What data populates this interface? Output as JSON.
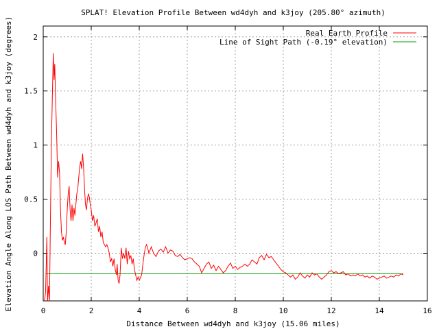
{
  "chart_data": {
    "type": "line",
    "title": "SPLAT! Elevation Profile Between wd4dyh and k3joy (205.80° azimuth)",
    "xlabel": "Distance Between wd4dyh and k3joy (15.06 miles)",
    "ylabel": "Elevation Angle Along LOS Path Between wd4dyh and k3joy (degrees)",
    "xlim": [
      0,
      16
    ],
    "ylim": [
      -0.44,
      2.1
    ],
    "xticks": [
      "0",
      "2",
      "4",
      "6",
      "8",
      "10",
      "12",
      "14",
      "16"
    ],
    "yticks": [
      "0",
      "0.5",
      "1",
      "1.5",
      "2"
    ],
    "grid": true,
    "legend_position": "top-right",
    "series": [
      {
        "name": "Real Earth Profile",
        "color": "#ff0000",
        "points": [
          [
            0.05,
            -0.45
          ],
          [
            0.1,
            -0.35
          ],
          [
            0.15,
            0.15
          ],
          [
            0.18,
            -0.45
          ],
          [
            0.22,
            -0.3
          ],
          [
            0.26,
            -0.45
          ],
          [
            0.3,
            0.3
          ],
          [
            0.34,
            1.0
          ],
          [
            0.38,
            1.45
          ],
          [
            0.42,
            1.85
          ],
          [
            0.45,
            1.6
          ],
          [
            0.48,
            1.75
          ],
          [
            0.52,
            1.4
          ],
          [
            0.56,
            1.1
          ],
          [
            0.6,
            0.7
          ],
          [
            0.64,
            0.85
          ],
          [
            0.68,
            0.75
          ],
          [
            0.72,
            0.4
          ],
          [
            0.76,
            0.2
          ],
          [
            0.8,
            0.12
          ],
          [
            0.84,
            0.15
          ],
          [
            0.88,
            0.1
          ],
          [
            0.92,
            0.08
          ],
          [
            0.96,
            0.2
          ],
          [
            1.0,
            0.4
          ],
          [
            1.04,
            0.55
          ],
          [
            1.08,
            0.62
          ],
          [
            1.12,
            0.4
          ],
          [
            1.16,
            0.3
          ],
          [
            1.2,
            0.45
          ],
          [
            1.24,
            0.3
          ],
          [
            1.28,
            0.42
          ],
          [
            1.32,
            0.35
          ],
          [
            1.36,
            0.45
          ],
          [
            1.4,
            0.55
          ],
          [
            1.44,
            0.6
          ],
          [
            1.48,
            0.7
          ],
          [
            1.52,
            0.8
          ],
          [
            1.56,
            0.85
          ],
          [
            1.6,
            0.78
          ],
          [
            1.64,
            0.92
          ],
          [
            1.68,
            0.8
          ],
          [
            1.72,
            0.6
          ],
          [
            1.76,
            0.45
          ],
          [
            1.8,
            0.4
          ],
          [
            1.84,
            0.5
          ],
          [
            1.88,
            0.55
          ],
          [
            1.92,
            0.52
          ],
          [
            1.96,
            0.45
          ],
          [
            2.0,
            0.4
          ],
          [
            2.05,
            0.3
          ],
          [
            2.1,
            0.35
          ],
          [
            2.15,
            0.25
          ],
          [
            2.2,
            0.28
          ],
          [
            2.25,
            0.32
          ],
          [
            2.3,
            0.2
          ],
          [
            2.35,
            0.25
          ],
          [
            2.4,
            0.15
          ],
          [
            2.45,
            0.2
          ],
          [
            2.5,
            0.1
          ],
          [
            2.55,
            0.08
          ],
          [
            2.6,
            0.06
          ],
          [
            2.65,
            0.08
          ],
          [
            2.7,
            0.05
          ],
          [
            2.75,
            0.0
          ],
          [
            2.8,
            -0.08
          ],
          [
            2.85,
            -0.05
          ],
          [
            2.9,
            -0.12
          ],
          [
            2.95,
            -0.05
          ],
          [
            3.0,
            -0.15
          ],
          [
            3.05,
            -0.2
          ],
          [
            3.08,
            -0.1
          ],
          [
            3.12,
            -0.25
          ],
          [
            3.16,
            -0.28
          ],
          [
            3.2,
            -0.2
          ],
          [
            3.25,
            0.05
          ],
          [
            3.3,
            -0.05
          ],
          [
            3.35,
            0.0
          ],
          [
            3.4,
            -0.05
          ],
          [
            3.45,
            0.05
          ],
          [
            3.5,
            -0.1
          ],
          [
            3.55,
            0.02
          ],
          [
            3.6,
            -0.05
          ],
          [
            3.65,
            -0.02
          ],
          [
            3.7,
            -0.1
          ],
          [
            3.75,
            -0.05
          ],
          [
            3.8,
            -0.15
          ],
          [
            3.85,
            -0.2
          ],
          [
            3.9,
            -0.25
          ],
          [
            3.95,
            -0.22
          ],
          [
            4.0,
            -0.25
          ],
          [
            4.1,
            -0.2
          ],
          [
            4.15,
            -0.1
          ],
          [
            4.2,
            -0.02
          ],
          [
            4.25,
            0.05
          ],
          [
            4.3,
            0.08
          ],
          [
            4.35,
            0.05
          ],
          [
            4.4,
            0.0
          ],
          [
            4.45,
            0.03
          ],
          [
            4.5,
            0.06
          ],
          [
            4.6,
            0.0
          ],
          [
            4.7,
            -0.03
          ],
          [
            4.8,
            0.02
          ],
          [
            4.9,
            0.04
          ],
          [
            5.0,
            0.01
          ],
          [
            5.1,
            0.06
          ],
          [
            5.2,
            0.0
          ],
          [
            5.3,
            0.03
          ],
          [
            5.4,
            0.02
          ],
          [
            5.5,
            -0.02
          ],
          [
            5.6,
            -0.03
          ],
          [
            5.7,
            -0.01
          ],
          [
            5.8,
            -0.04
          ],
          [
            5.9,
            -0.06
          ],
          [
            6.0,
            -0.05
          ],
          [
            6.1,
            -0.04
          ],
          [
            6.2,
            -0.05
          ],
          [
            6.3,
            -0.08
          ],
          [
            6.4,
            -0.1
          ],
          [
            6.5,
            -0.12
          ],
          [
            6.6,
            -0.18
          ],
          [
            6.7,
            -0.14
          ],
          [
            6.8,
            -0.1
          ],
          [
            6.9,
            -0.08
          ],
          [
            7.0,
            -0.14
          ],
          [
            7.1,
            -0.11
          ],
          [
            7.2,
            -0.16
          ],
          [
            7.3,
            -0.12
          ],
          [
            7.4,
            -0.15
          ],
          [
            7.5,
            -0.18
          ],
          [
            7.6,
            -0.16
          ],
          [
            7.7,
            -0.12
          ],
          [
            7.8,
            -0.09
          ],
          [
            7.9,
            -0.14
          ],
          [
            8.0,
            -0.12
          ],
          [
            8.1,
            -0.15
          ],
          [
            8.2,
            -0.13
          ],
          [
            8.3,
            -0.12
          ],
          [
            8.4,
            -0.1
          ],
          [
            8.5,
            -0.12
          ],
          [
            8.6,
            -0.1
          ],
          [
            8.7,
            -0.06
          ],
          [
            8.8,
            -0.08
          ],
          [
            8.9,
            -0.1
          ],
          [
            9.0,
            -0.04
          ],
          [
            9.1,
            -0.02
          ],
          [
            9.2,
            -0.06
          ],
          [
            9.3,
            -0.01
          ],
          [
            9.4,
            -0.04
          ],
          [
            9.5,
            -0.03
          ],
          [
            9.6,
            -0.06
          ],
          [
            9.7,
            -0.09
          ],
          [
            9.8,
            -0.12
          ],
          [
            9.9,
            -0.15
          ],
          [
            10.0,
            -0.17
          ],
          [
            10.1,
            -0.18
          ],
          [
            10.2,
            -0.2
          ],
          [
            10.3,
            -0.22
          ],
          [
            10.4,
            -0.2
          ],
          [
            10.5,
            -0.24
          ],
          [
            10.6,
            -0.22
          ],
          [
            10.7,
            -0.18
          ],
          [
            10.8,
            -0.21
          ],
          [
            10.9,
            -0.23
          ],
          [
            11.0,
            -0.2
          ],
          [
            11.1,
            -0.22
          ],
          [
            11.2,
            -0.18
          ],
          [
            11.3,
            -0.2
          ],
          [
            11.4,
            -0.19
          ],
          [
            11.5,
            -0.22
          ],
          [
            11.6,
            -0.24
          ],
          [
            11.7,
            -0.22
          ],
          [
            11.8,
            -0.2
          ],
          [
            11.9,
            -0.17
          ],
          [
            12.0,
            -0.16
          ],
          [
            12.1,
            -0.18
          ],
          [
            12.2,
            -0.17
          ],
          [
            12.3,
            -0.19
          ],
          [
            12.4,
            -0.18
          ],
          [
            12.5,
            -0.17
          ],
          [
            12.6,
            -0.2
          ],
          [
            12.7,
            -0.19
          ],
          [
            12.8,
            -0.21
          ],
          [
            12.9,
            -0.2
          ],
          [
            13.0,
            -0.21
          ],
          [
            13.1,
            -0.19
          ],
          [
            13.2,
            -0.21
          ],
          [
            13.3,
            -0.2
          ],
          [
            13.4,
            -0.22
          ],
          [
            13.5,
            -0.21
          ],
          [
            13.6,
            -0.23
          ],
          [
            13.7,
            -0.21
          ],
          [
            13.8,
            -0.22
          ],
          [
            13.9,
            -0.24
          ],
          [
            14.0,
            -0.23
          ],
          [
            14.1,
            -0.22
          ],
          [
            14.2,
            -0.21
          ],
          [
            14.3,
            -0.23
          ],
          [
            14.4,
            -0.22
          ],
          [
            14.5,
            -0.21
          ],
          [
            14.6,
            -0.22
          ],
          [
            14.7,
            -0.2
          ],
          [
            14.8,
            -0.21
          ],
          [
            14.9,
            -0.19
          ],
          [
            15.0,
            -0.2
          ]
        ]
      },
      {
        "name": "Line of Sight Path (-0.19° elevation)",
        "color": "#00a000",
        "points": [
          [
            0.1,
            -0.19
          ],
          [
            15.0,
            -0.19
          ]
        ]
      }
    ]
  }
}
